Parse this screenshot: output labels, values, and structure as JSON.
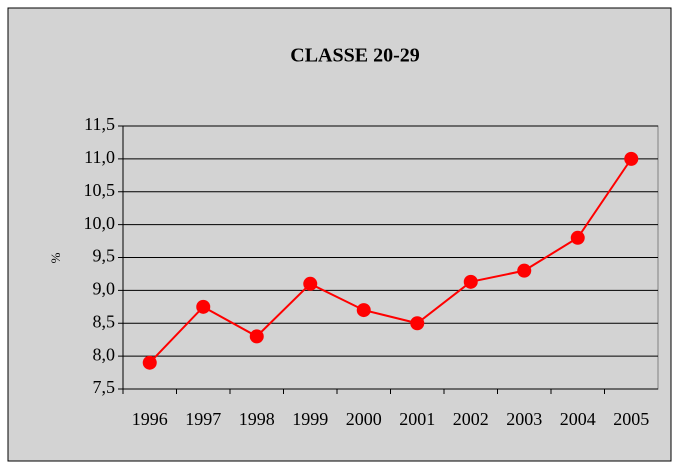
{
  "chart_data": {
    "type": "line",
    "title": "CLASSE 20-29",
    "y_label": "%",
    "categories": [
      "1996",
      "1997",
      "1998",
      "1999",
      "2000",
      "2001",
      "2002",
      "2003",
      "2004",
      "2005"
    ],
    "series": [
      {
        "name": "CLASSE 20-29",
        "color": "#ff0000",
        "values": [
          7.9,
          8.75,
          8.3,
          9.1,
          8.7,
          8.5,
          9.13,
          9.3,
          9.8,
          11.0
        ]
      }
    ],
    "ylim": [
      7.5,
      11.5
    ],
    "yticks": [
      {
        "value": 7.5,
        "label": "7,5"
      },
      {
        "value": 8.0,
        "label": "8,0"
      },
      {
        "value": 8.5,
        "label": "8,5"
      },
      {
        "value": 9.0,
        "label": "9,0"
      },
      {
        "value": 9.5,
        "label": "9,5"
      },
      {
        "value": 10.0,
        "label": "10,0"
      },
      {
        "value": 10.5,
        "label": "10,5"
      },
      {
        "value": 11.0,
        "label": "11,0"
      },
      {
        "value": 11.5,
        "label": "11,5"
      }
    ],
    "grid": true
  }
}
